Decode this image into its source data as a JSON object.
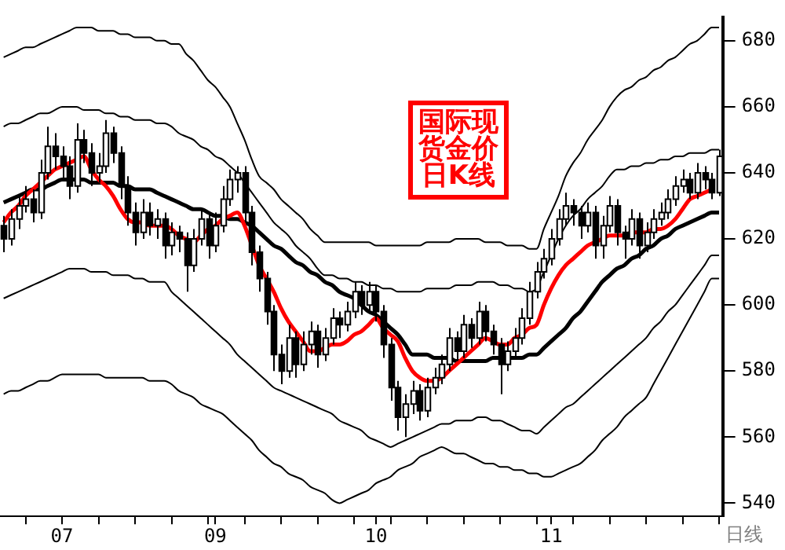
{
  "chart_data": {
    "type": "candlestick",
    "title": "国际现货金价日K线",
    "annotations": [
      "日线"
    ],
    "categories": [
      null,
      null,
      null,
      null,
      null,
      null,
      null,
      null,
      "07",
      null,
      null,
      null,
      null,
      null,
      null,
      null,
      null,
      null,
      null,
      null,
      null,
      null,
      null,
      null,
      null,
      null,
      null,
      null,
      null,
      "09",
      null,
      null,
      null,
      null,
      null,
      null,
      null,
      null,
      null,
      null,
      null,
      null,
      null,
      null,
      null,
      null,
      null,
      null,
      null,
      null,
      null,
      "10",
      null,
      null,
      null,
      null,
      null,
      null,
      null,
      null,
      null,
      null,
      null,
      null,
      null,
      null,
      null,
      null,
      null,
      null,
      null,
      null,
      null,
      null,
      null,
      "11",
      null,
      null,
      null,
      null,
      null,
      null,
      null,
      null,
      null,
      null,
      null,
      null,
      null,
      null,
      null,
      null,
      null,
      null,
      null,
      null,
      null,
      null,
      null
    ],
    "ohlc": [
      [
        624,
        627,
        616,
        620
      ],
      [
        620,
        629,
        618,
        626
      ],
      [
        626,
        633,
        623,
        630
      ],
      [
        630,
        636,
        628,
        632
      ],
      [
        632,
        635,
        625,
        628
      ],
      [
        628,
        644,
        626,
        640
      ],
      [
        640,
        654,
        638,
        648
      ],
      [
        648,
        652,
        641,
        645
      ],
      [
        645,
        648,
        638,
        642
      ],
      [
        642,
        645,
        632,
        636
      ],
      [
        636,
        655,
        634,
        650
      ],
      [
        650,
        653,
        643,
        646
      ],
      [
        646,
        649,
        636,
        640
      ],
      [
        640,
        646,
        637,
        642
      ],
      [
        642,
        656,
        640,
        652
      ],
      [
        652,
        654,
        643,
        646
      ],
      [
        646,
        648,
        632,
        636
      ],
      [
        636,
        639,
        624,
        628
      ],
      [
        628,
        631,
        618,
        622
      ],
      [
        622,
        632,
        620,
        628
      ],
      [
        628,
        631,
        621,
        624
      ],
      [
        624,
        629,
        620,
        626
      ],
      [
        626,
        628,
        614,
        618
      ],
      [
        618,
        625,
        615,
        622
      ],
      [
        622,
        624,
        616,
        620
      ],
      [
        620,
        622,
        604,
        612
      ],
      [
        612,
        623,
        610,
        620
      ],
      [
        620,
        629,
        618,
        626
      ],
      [
        626,
        628,
        614,
        618
      ],
      [
        618,
        628,
        616,
        624
      ],
      [
        624,
        636,
        622,
        632
      ],
      [
        632,
        641,
        630,
        638
      ],
      [
        638,
        642,
        634,
        640
      ],
      [
        640,
        642,
        625,
        628
      ],
      [
        628,
        630,
        612,
        616
      ],
      [
        616,
        618,
        604,
        608
      ],
      [
        608,
        610,
        594,
        598
      ],
      [
        598,
        600,
        580,
        585
      ],
      [
        585,
        588,
        576,
        580
      ],
      [
        580,
        594,
        578,
        590
      ],
      [
        590,
        592,
        578,
        582
      ],
      [
        582,
        592,
        580,
        588
      ],
      [
        588,
        595,
        585,
        592
      ],
      [
        592,
        594,
        581,
        585
      ],
      [
        585,
        593,
        583,
        590
      ],
      [
        590,
        599,
        588,
        596
      ],
      [
        596,
        598,
        590,
        594
      ],
      [
        594,
        601,
        592,
        598
      ],
      [
        598,
        607,
        596,
        604
      ],
      [
        604,
        606,
        597,
        600
      ],
      [
        600,
        607,
        598,
        604
      ],
      [
        604,
        606,
        595,
        598
      ],
      [
        598,
        600,
        584,
        588
      ],
      [
        588,
        590,
        571,
        575
      ],
      [
        575,
        577,
        562,
        566
      ],
      [
        566,
        573,
        560,
        570
      ],
      [
        570,
        577,
        567,
        574
      ],
      [
        574,
        576,
        565,
        568
      ],
      [
        568,
        578,
        566,
        575
      ],
      [
        575,
        581,
        573,
        578
      ],
      [
        578,
        585,
        576,
        582
      ],
      [
        582,
        593,
        580,
        590
      ],
      [
        590,
        592,
        583,
        586
      ],
      [
        586,
        597,
        584,
        594
      ],
      [
        594,
        596,
        587,
        590
      ],
      [
        590,
        601,
        588,
        598
      ],
      [
        598,
        600,
        589,
        592
      ],
      [
        592,
        594,
        585,
        588
      ],
      [
        588,
        590,
        573,
        582
      ],
      [
        582,
        589,
        580,
        586
      ],
      [
        586,
        593,
        584,
        590
      ],
      [
        590,
        599,
        588,
        596
      ],
      [
        596,
        607,
        594,
        604
      ],
      [
        604,
        613,
        602,
        610
      ],
      [
        610,
        617,
        608,
        614
      ],
      [
        614,
        623,
        612,
        620
      ],
      [
        620,
        629,
        618,
        626
      ],
      [
        626,
        634,
        624,
        630
      ],
      [
        630,
        632,
        624,
        628
      ],
      [
        628,
        630,
        620,
        624
      ],
      [
        624,
        631,
        622,
        628
      ],
      [
        628,
        630,
        614,
        618
      ],
      [
        618,
        627,
        614,
        624
      ],
      [
        624,
        633,
        622,
        630
      ],
      [
        630,
        632,
        618,
        622
      ],
      [
        622,
        624,
        614,
        620
      ],
      [
        620,
        629,
        618,
        626
      ],
      [
        626,
        628,
        614,
        618
      ],
      [
        618,
        625,
        616,
        622
      ],
      [
        622,
        629,
        620,
        626
      ],
      [
        626,
        631,
        624,
        628
      ],
      [
        628,
        635,
        626,
        632
      ],
      [
        632,
        639,
        630,
        636
      ],
      [
        636,
        641,
        634,
        638
      ],
      [
        638,
        640,
        632,
        634
      ],
      [
        634,
        643,
        632,
        640
      ],
      [
        640,
        642,
        635,
        638
      ],
      [
        638,
        640,
        632,
        634
      ],
      [
        634,
        647,
        633,
        645
      ]
    ],
    "series": [
      {
        "type": "line",
        "color": "#ff0000",
        "values": [
          625,
          628,
          630,
          633,
          635,
          637,
          639,
          641,
          642,
          643,
          644,
          645,
          641,
          638,
          636,
          633,
          629,
          626,
          625,
          625,
          624,
          624,
          624,
          623,
          621,
          620,
          619,
          621,
          623,
          624,
          626,
          627,
          628,
          624,
          618,
          612,
          608,
          604,
          599,
          595,
          592,
          589,
          586,
          586,
          587,
          588,
          588,
          589,
          591,
          592,
          594,
          596,
          593,
          591,
          589,
          584,
          580,
          578,
          577,
          577,
          578,
          580,
          582,
          584,
          586,
          588,
          590,
          589,
          588,
          588,
          590,
          591,
          593,
          594,
          600,
          605,
          609,
          612,
          614,
          616,
          618,
          619,
          620,
          621,
          621,
          621,
          622,
          622,
          622,
          623,
          623,
          624,
          626,
          629,
          632,
          633,
          634,
          635,
          null
        ]
      },
      {
        "type": "line",
        "color": "#000000",
        "values": [
          631,
          632,
          633,
          634,
          635,
          635,
          636,
          637,
          638,
          638,
          638,
          638,
          637,
          637,
          637,
          637,
          636,
          636,
          635,
          635,
          635,
          634,
          633,
          632,
          631,
          630,
          629,
          629,
          628,
          627,
          627,
          626,
          626,
          625,
          624,
          622,
          620,
          618,
          617,
          615,
          613,
          612,
          610,
          609,
          607,
          606,
          604,
          603,
          602,
          600,
          598,
          597,
          595,
          593,
          591,
          588,
          585,
          585,
          585,
          584,
          584,
          584,
          583,
          583,
          583,
          583,
          583,
          584,
          584,
          584,
          584,
          584,
          585,
          585,
          587,
          589,
          591,
          593,
          596,
          598,
          601,
          604,
          607,
          609,
          611,
          612,
          614,
          615,
          617,
          618,
          620,
          621,
          623,
          624,
          625,
          626,
          627,
          628,
          628
        ]
      },
      {
        "type": "line",
        "color": "#000000",
        "values": [
          675,
          676,
          677,
          678,
          678,
          679,
          680,
          681,
          682,
          683,
          684,
          684,
          684,
          683,
          683,
          683,
          682,
          682,
          681,
          681,
          681,
          680,
          680,
          679,
          679,
          676,
          674,
          671,
          668,
          666,
          663,
          660,
          655,
          650,
          644,
          639,
          637,
          635,
          632,
          630,
          628,
          626,
          623,
          621,
          619,
          619,
          619,
          619,
          619,
          619,
          619,
          618,
          618,
          618,
          618,
          618,
          618,
          618,
          619,
          619,
          619,
          619,
          620,
          620,
          620,
          620,
          619,
          619,
          619,
          618,
          618,
          618,
          617,
          617,
          623,
          628,
          633,
          639,
          643,
          646,
          650,
          653,
          656,
          660,
          663,
          665,
          666,
          668,
          669,
          671,
          672,
          674,
          675,
          677,
          679,
          680,
          682,
          684,
          684
        ]
      },
      {
        "type": "line",
        "color": "#000000",
        "values": [
          654,
          655,
          655,
          656,
          657,
          658,
          658,
          659,
          660,
          660,
          660,
          659,
          659,
          659,
          658,
          658,
          657,
          657,
          656,
          656,
          656,
          655,
          655,
          654,
          652,
          651,
          650,
          648,
          647,
          645,
          644,
          642,
          640,
          637,
          634,
          631,
          628,
          625,
          623,
          621,
          618,
          616,
          614,
          611,
          609,
          609,
          608,
          608,
          607,
          607,
          606,
          606,
          605,
          605,
          604,
          604,
          604,
          604,
          605,
          605,
          605,
          605,
          606,
          606,
          606,
          607,
          607,
          607,
          606,
          606,
          605,
          605,
          604,
          605,
          610,
          615,
          620,
          624,
          627,
          629,
          632,
          634,
          636,
          639,
          641,
          641,
          642,
          642,
          643,
          643,
          644,
          644,
          645,
          645,
          646,
          646,
          646,
          647,
          647
        ]
      },
      {
        "type": "line",
        "color": "#000000",
        "values": [
          602,
          603,
          604,
          605,
          606,
          607,
          608,
          609,
          610,
          611,
          611,
          611,
          610,
          610,
          610,
          609,
          609,
          609,
          608,
          608,
          607,
          607,
          607,
          604,
          602,
          600,
          598,
          596,
          594,
          592,
          590,
          588,
          585,
          583,
          581,
          579,
          577,
          575,
          574,
          573,
          572,
          571,
          570,
          569,
          568,
          567,
          565,
          564,
          563,
          562,
          560,
          559,
          558,
          557,
          558,
          559,
          560,
          561,
          562,
          563,
          564,
          564,
          565,
          565,
          565,
          566,
          566,
          565,
          565,
          564,
          563,
          562,
          562,
          561,
          563,
          565,
          567,
          569,
          570,
          572,
          574,
          576,
          578,
          580,
          582,
          584,
          586,
          588,
          590,
          593,
          595,
          598,
          600,
          603,
          606,
          609,
          612,
          615,
          615
        ]
      },
      {
        "type": "line",
        "color": "#000000",
        "values": [
          573,
          574,
          574,
          575,
          576,
          577,
          577,
          578,
          579,
          579,
          579,
          579,
          579,
          579,
          578,
          578,
          578,
          578,
          578,
          578,
          577,
          577,
          577,
          576,
          574,
          573,
          572,
          570,
          569,
          568,
          567,
          565,
          563,
          561,
          559,
          556,
          554,
          552,
          551,
          549,
          548,
          547,
          545,
          544,
          543,
          541,
          540,
          541,
          542,
          543,
          544,
          546,
          547,
          548,
          550,
          551,
          552,
          554,
          555,
          556,
          557,
          556,
          555,
          555,
          554,
          553,
          552,
          552,
          551,
          551,
          550,
          550,
          549,
          549,
          548,
          548,
          549,
          550,
          551,
          552,
          554,
          556,
          559,
          561,
          563,
          566,
          568,
          570,
          572,
          576,
          580,
          584,
          588,
          592,
          596,
          600,
          604,
          608,
          608
        ]
      }
    ],
    "ylim": [
      536,
      687
    ],
    "yticks": [
      540,
      560,
      580,
      600,
      620,
      640,
      660,
      680
    ],
    "legend": false,
    "grid": false
  }
}
